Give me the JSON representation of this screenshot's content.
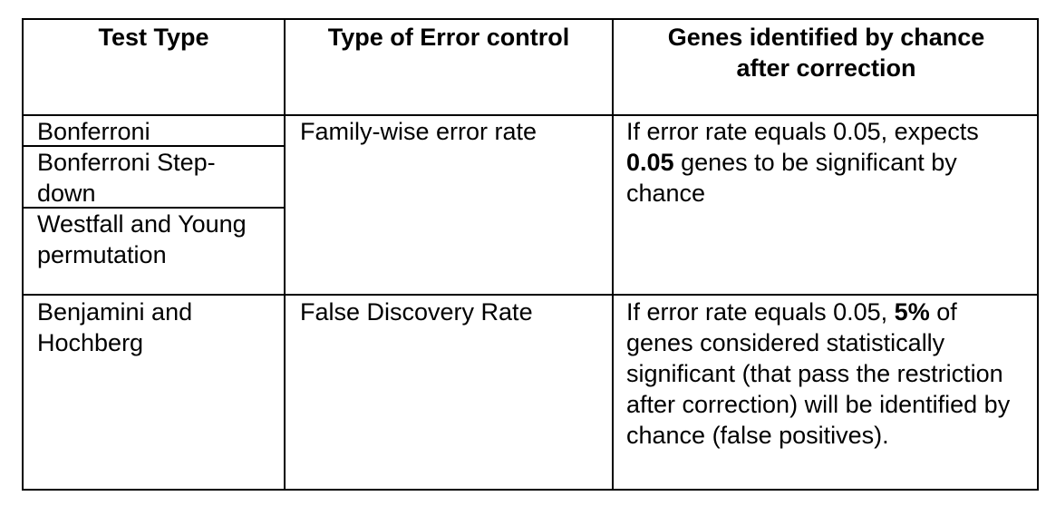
{
  "table": {
    "headers": {
      "test_type": "Test Type",
      "error_control": "Type of Error control",
      "genes": "Genes identified by chance after correction"
    },
    "fwer_group": {
      "tests": [
        "Bonferroni",
        "Bonferroni Step-down",
        "Westfall and Young permutation"
      ],
      "error_control": "Family-wise error rate",
      "genes_prefix": "If error rate equals 0.05, expects",
      "genes_bold": "0.05",
      "genes_suffix": "genes to be significant by chance"
    },
    "fdr_group": {
      "test": "Benjamini and Hochberg",
      "error_control": "False Discovery Rate",
      "genes_prefix": "If error rate equals 0.05,",
      "genes_bold": "5%",
      "genes_suffix": "of genes considered statistically significant (that pass the restriction after correction) will be identified by chance (false positives)."
    }
  }
}
